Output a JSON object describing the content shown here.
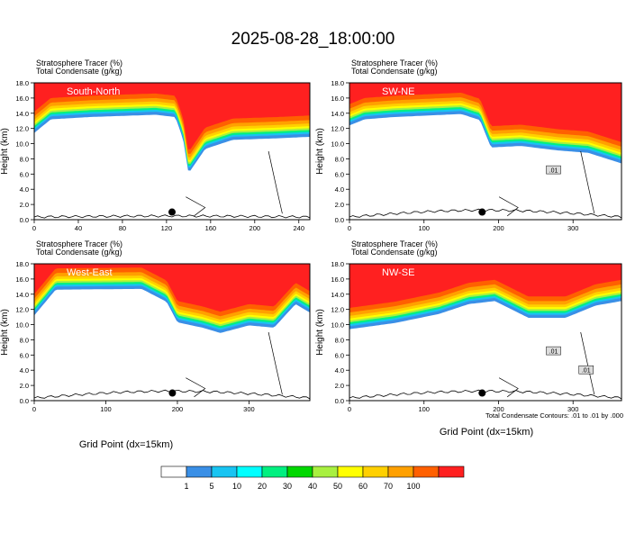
{
  "figure": {
    "title": "2025-08-28_18:00:00",
    "bottom_xlabel": "Grid Point (dx=15km)",
    "contour_note": "Total Condensate Contours: .01 to .01 by .000"
  },
  "colorbar": {
    "colors": [
      "#ffffff",
      "#3a8fe6",
      "#18c4f2",
      "#00ffff",
      "#00f080",
      "#00d800",
      "#a8f040",
      "#ffff00",
      "#ffd000",
      "#ffa000",
      "#ff6000",
      "#ff2020"
    ],
    "labels": [
      "1",
      "5",
      "10",
      "20",
      "30",
      "40",
      "50",
      "60",
      "70",
      "100"
    ]
  },
  "chart_data": [
    {
      "type": "contour",
      "label": "South-North",
      "header_line1": "Stratosphere Tracer    (%)",
      "header_line2": "Total Condensate    (g/kg)",
      "ylabel": "Height (km)",
      "xlim": [
        0,
        250
      ],
      "ylim": [
        0,
        18
      ],
      "xticks": [
        "0",
        "40",
        "80",
        "120",
        "160",
        "200",
        "240"
      ],
      "yticks": [
        "0.0",
        "2.0",
        "4.0",
        "6.0",
        "8.0",
        "10.0",
        "12.0",
        "14.0",
        "16.0",
        "18.0"
      ],
      "marker": [
        125,
        1.0
      ],
      "profile": [
        [
          0,
          12.3
        ],
        [
          15,
          14.1
        ],
        [
          50,
          14.4
        ],
        [
          110,
          14.7
        ],
        [
          128,
          14.4
        ],
        [
          135,
          11.5
        ],
        [
          140,
          7.0
        ],
        [
          155,
          10.2
        ],
        [
          180,
          11.4
        ],
        [
          220,
          11.6
        ],
        [
          250,
          11.8
        ]
      ],
      "contour_labels": []
    },
    {
      "type": "contour",
      "label": "SW-NE",
      "header_line1": "Stratosphere Tracer    (%)",
      "header_line2": "Total Condensate    (g/kg)",
      "ylabel": "Height (km)",
      "xlim": [
        0,
        365
      ],
      "ylim": [
        0,
        18
      ],
      "xticks": [
        "0",
        "100",
        "200",
        "300"
      ],
      "yticks": [
        "0.0",
        "2.0",
        "4.0",
        "6.0",
        "8.0",
        "10.0",
        "12.0",
        "14.0",
        "16.0",
        "18.0"
      ],
      "marker": [
        178,
        1.0
      ],
      "profile": [
        [
          0,
          13.3
        ],
        [
          20,
          14.1
        ],
        [
          60,
          14.4
        ],
        [
          150,
          14.8
        ],
        [
          175,
          14.0
        ],
        [
          190,
          10.4
        ],
        [
          230,
          10.6
        ],
        [
          280,
          10.0
        ],
        [
          320,
          9.7
        ],
        [
          365,
          8.3
        ]
      ],
      "contour_labels": [
        ".01"
      ]
    },
    {
      "type": "contour",
      "label": "West-East",
      "header_line1": "Stratosphere Tracer    (%)",
      "header_line2": "Total Condensate    (g/kg)",
      "ylabel": "Height (km)",
      "xlim": [
        0,
        385
      ],
      "ylim": [
        0,
        18
      ],
      "xticks": [
        "0",
        "100",
        "200",
        "300"
      ],
      "yticks": [
        "0.0",
        "2.0",
        "4.0",
        "6.0",
        "8.0",
        "10.0",
        "12.0",
        "14.0",
        "16.0",
        "18.0"
      ],
      "marker": [
        193,
        1.0
      ],
      "profile": [
        [
          0,
          12.1
        ],
        [
          30,
          15.5
        ],
        [
          150,
          15.6
        ],
        [
          185,
          13.9
        ],
        [
          200,
          11.2
        ],
        [
          235,
          10.5
        ],
        [
          260,
          9.8
        ],
        [
          300,
          10.8
        ],
        [
          335,
          10.5
        ],
        [
          365,
          13.6
        ],
        [
          385,
          12.5
        ]
      ],
      "contour_labels": []
    },
    {
      "type": "contour",
      "label": "NW-SE",
      "header_line1": "Stratosphere Tracer    (%)",
      "header_line2": "Total Condensate    (g/kg)",
      "ylabel": "Height (km)",
      "xlim": [
        0,
        365
      ],
      "ylim": [
        0,
        18
      ],
      "xticks": [
        "0",
        "100",
        "200",
        "300"
      ],
      "yticks": [
        "0.0",
        "2.0",
        "4.0",
        "6.0",
        "8.0",
        "10.0",
        "12.0",
        "14.0",
        "16.0",
        "18.0"
      ],
      "marker": [
        178,
        1.0
      ],
      "profile": [
        [
          0,
          10.3
        ],
        [
          60,
          11.1
        ],
        [
          120,
          12.3
        ],
        [
          160,
          13.6
        ],
        [
          195,
          14.0
        ],
        [
          240,
          11.8
        ],
        [
          290,
          11.8
        ],
        [
          330,
          13.4
        ],
        [
          365,
          14.0
        ]
      ],
      "contour_labels": [
        ".01",
        ".01"
      ]
    }
  ]
}
